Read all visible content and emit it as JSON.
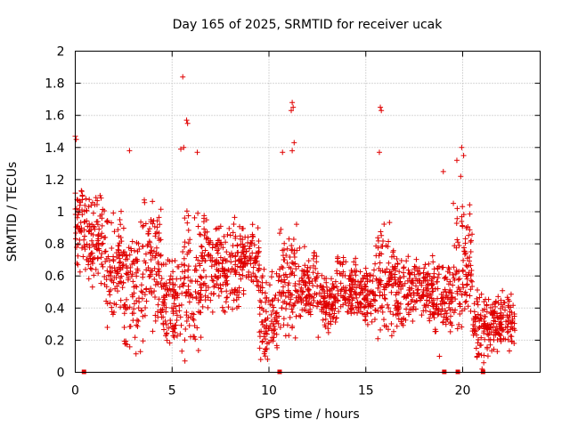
{
  "chart_data": {
    "type": "scatter",
    "title": "Day 165 of 2025, SRMTID for receiver ucak",
    "xlabel": "GPS time / hours",
    "ylabel": "SRMTID / TECUs",
    "xlim": [
      0,
      24
    ],
    "ylim": [
      0,
      2
    ],
    "xticks": [
      "0",
      "5",
      "10",
      "15",
      "20"
    ],
    "xtick_values": [
      0,
      5,
      10,
      15,
      20
    ],
    "yticks": [
      "0",
      "0.2",
      "0.4",
      "0.6",
      "0.8",
      "1",
      "1.2",
      "1.4",
      "1.6",
      "1.8",
      "2"
    ],
    "ytick_values": [
      0,
      0.2,
      0.4,
      0.6,
      0.8,
      1.0,
      1.2,
      1.4,
      1.6,
      1.8,
      2.0
    ],
    "grid": true,
    "marker": "+",
    "color": "#e00000",
    "clusters": [
      {
        "x0": 0.0,
        "x1": 0.6,
        "lo": 0.55,
        "hi": 1.2
      },
      {
        "x0": 0.6,
        "x1": 1.5,
        "lo": 0.45,
        "hi": 1.15
      },
      {
        "x0": 1.5,
        "x1": 2.5,
        "lo": 0.25,
        "hi": 1.05
      },
      {
        "x0": 2.5,
        "x1": 3.5,
        "lo": 0.05,
        "hi": 1.0
      },
      {
        "x0": 3.5,
        "x1": 4.5,
        "lo": 0.2,
        "hi": 1.15
      },
      {
        "x0": 4.5,
        "x1": 5.5,
        "lo": 0.15,
        "hi": 0.75
      },
      {
        "x0": 5.5,
        "x1": 6.5,
        "lo": 0.05,
        "hi": 1.1
      },
      {
        "x0": 6.5,
        "x1": 7.5,
        "lo": 0.3,
        "hi": 1.05
      },
      {
        "x0": 7.5,
        "x1": 8.5,
        "lo": 0.3,
        "hi": 1.0
      },
      {
        "x0": 8.5,
        "x1": 9.5,
        "lo": 0.45,
        "hi": 0.95
      },
      {
        "x0": 9.5,
        "x1": 10.5,
        "lo": 0.03,
        "hi": 0.7
      },
      {
        "x0": 10.5,
        "x1": 11.5,
        "lo": 0.2,
        "hi": 0.95
      },
      {
        "x0": 11.5,
        "x1": 12.5,
        "lo": 0.3,
        "hi": 0.8
      },
      {
        "x0": 12.5,
        "x1": 13.5,
        "lo": 0.2,
        "hi": 0.65
      },
      {
        "x0": 13.5,
        "x1": 14.5,
        "lo": 0.3,
        "hi": 0.75
      },
      {
        "x0": 14.5,
        "x1": 15.5,
        "lo": 0.25,
        "hi": 0.7
      },
      {
        "x0": 15.5,
        "x1": 16.5,
        "lo": 0.2,
        "hi": 0.95
      },
      {
        "x0": 16.5,
        "x1": 17.5,
        "lo": 0.25,
        "hi": 0.75
      },
      {
        "x0": 17.5,
        "x1": 18.5,
        "lo": 0.3,
        "hi": 0.75
      },
      {
        "x0": 18.5,
        "x1": 19.5,
        "lo": 0.2,
        "hi": 0.75
      },
      {
        "x0": 19.5,
        "x1": 20.5,
        "lo": 0.2,
        "hi": 1.1
      },
      {
        "x0": 20.5,
        "x1": 21.5,
        "lo": 0.03,
        "hi": 0.55
      },
      {
        "x0": 21.5,
        "x1": 22.7,
        "lo": 0.1,
        "hi": 0.55
      }
    ],
    "outliers": [
      {
        "x": 0.0,
        "y": 1.47
      },
      {
        "x": 0.05,
        "y": 1.45
      },
      {
        "x": 2.8,
        "y": 1.38
      },
      {
        "x": 5.55,
        "y": 1.84
      },
      {
        "x": 5.75,
        "y": 1.57
      },
      {
        "x": 5.8,
        "y": 1.55
      },
      {
        "x": 5.6,
        "y": 1.4
      },
      {
        "x": 5.45,
        "y": 1.39
      },
      {
        "x": 6.3,
        "y": 1.37
      },
      {
        "x": 11.2,
        "y": 1.68
      },
      {
        "x": 11.25,
        "y": 1.65
      },
      {
        "x": 11.15,
        "y": 1.63
      },
      {
        "x": 11.3,
        "y": 1.43
      },
      {
        "x": 11.2,
        "y": 1.38
      },
      {
        "x": 10.7,
        "y": 1.37
      },
      {
        "x": 15.75,
        "y": 1.65
      },
      {
        "x": 15.8,
        "y": 1.63
      },
      {
        "x": 15.7,
        "y": 1.37
      },
      {
        "x": 19.0,
        "y": 1.25
      },
      {
        "x": 19.7,
        "y": 1.32
      },
      {
        "x": 19.95,
        "y": 1.4
      },
      {
        "x": 20.05,
        "y": 1.35
      },
      {
        "x": 19.9,
        "y": 1.22
      },
      {
        "x": 18.8,
        "y": 0.1
      },
      {
        "x": 21.0,
        "y": 0.02
      }
    ],
    "zero_markers": [
      0.45,
      10.55,
      19.05,
      19.75,
      21.05
    ]
  }
}
